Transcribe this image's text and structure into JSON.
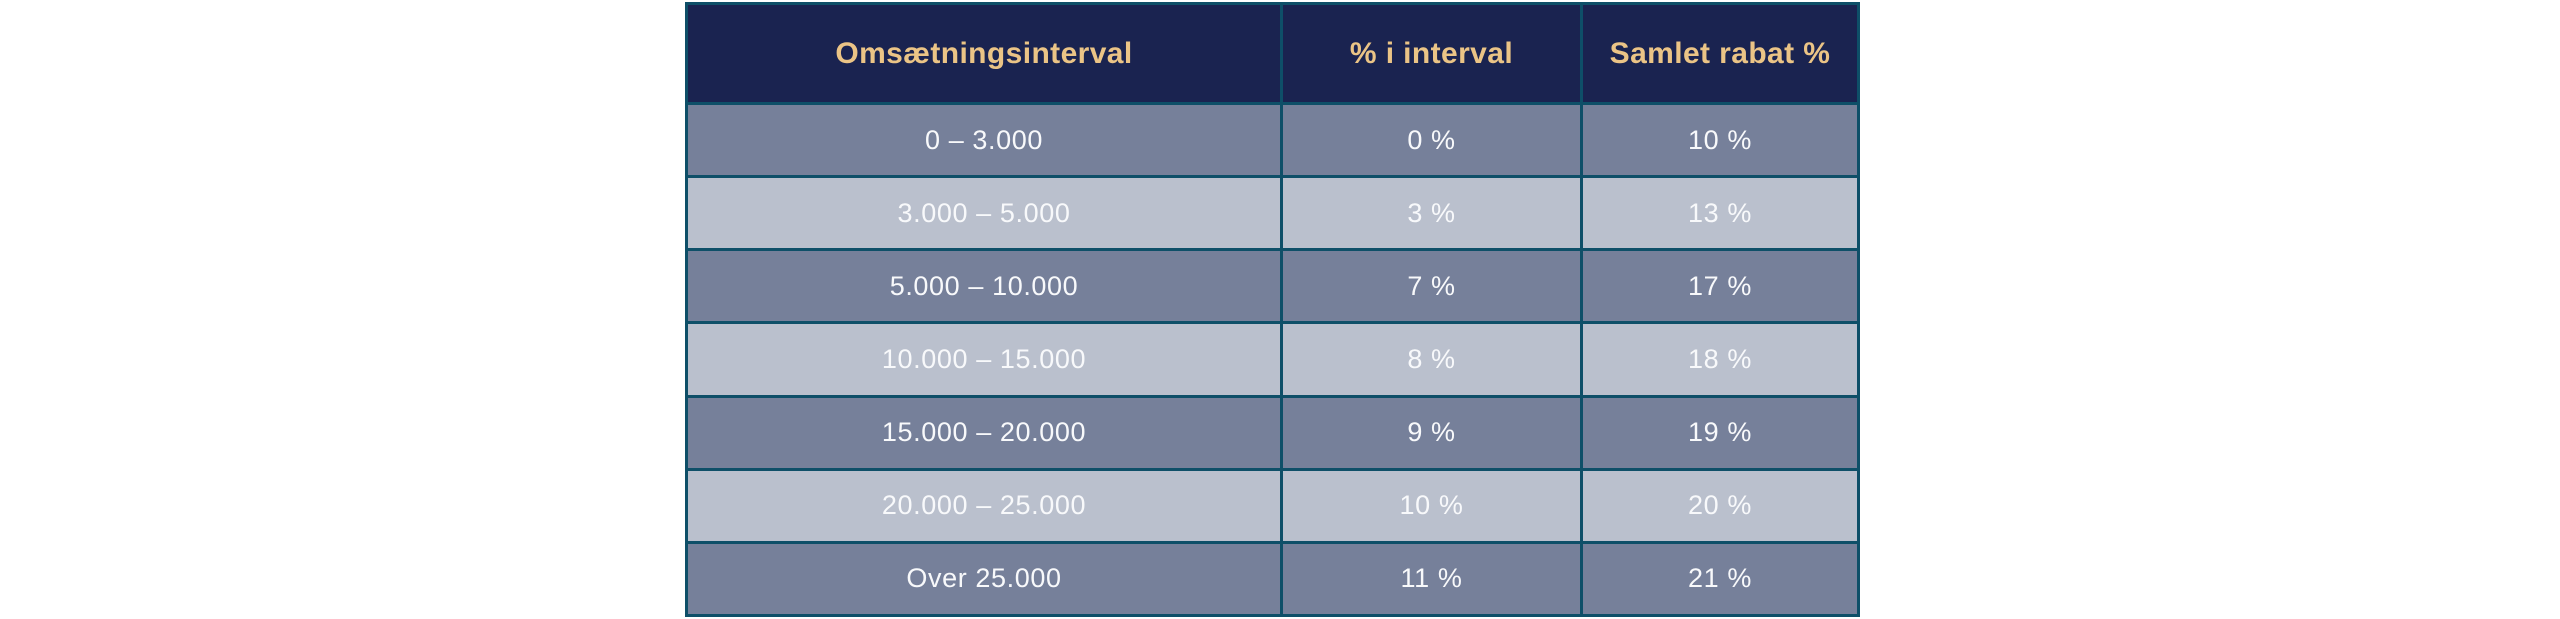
{
  "chart_data": {
    "type": "table",
    "columns": [
      "Omsætningsinterval",
      "% i interval",
      "Samlet rabat %"
    ],
    "rows": [
      [
        "0 – 3.000",
        "0 %",
        "10 %"
      ],
      [
        "3.000 – 5.000",
        "3 %",
        "13 %"
      ],
      [
        "5.000 – 10.000",
        "7 %",
        "17 %"
      ],
      [
        "10.000 – 15.000",
        "8 %",
        "18 %"
      ],
      [
        "15.000 – 20.000",
        "9 %",
        "19 %"
      ],
      [
        "20.000 – 25.000",
        "10 %",
        "20 %"
      ],
      [
        "Over 25.000",
        "11 %",
        "21 %"
      ]
    ],
    "interval_pct_values": [
      0,
      3,
      7,
      8,
      9,
      10,
      11
    ],
    "total_discount_pct_values": [
      10,
      13,
      17,
      18,
      19,
      20,
      21
    ],
    "legend_position": "none",
    "grid": true
  },
  "colors": {
    "page_bg": "#FFFFFF",
    "header_bg": "#1A2350",
    "header_text": "#EBC486",
    "row_dark_bg": "#76809A",
    "row_light_bg": "#BAC0CD",
    "row_text": "#F8F9FB",
    "border": "#0E4F68"
  }
}
